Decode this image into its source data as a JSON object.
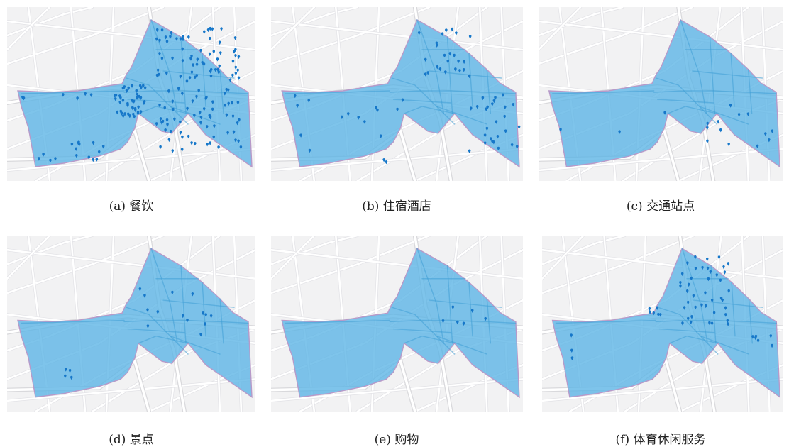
{
  "colors": {
    "background": "#f2f2f3",
    "road": "#ffffff",
    "major_road": "#d9d9dc",
    "road_casing": "#e2e2e6",
    "area_fill": "#5ab4e5",
    "area_stroke": "#b79ac9",
    "inner_road": "#3f9fd6",
    "poi_marker": "#1677c9"
  },
  "panels": [
    {
      "caption": "(a) 餐饮",
      "poi_category": "餐饮"
    },
    {
      "caption": "(b) 住宿酒店",
      "poi_category": "住宿酒店"
    },
    {
      "caption": "(c) 交通站点",
      "poi_category": "交通站点"
    },
    {
      "caption": "(d) 景点",
      "poi_category": "景点"
    },
    {
      "caption": "(e) 购物",
      "poi_category": "购物"
    },
    {
      "caption": "(f) 体育休闲服务",
      "poi_category": "体育休闲服务"
    }
  ]
}
